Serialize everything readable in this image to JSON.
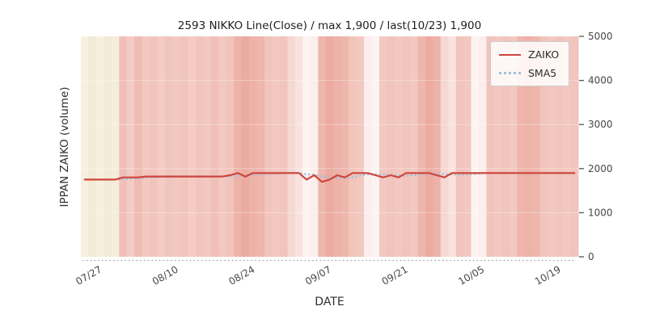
{
  "chart_data": {
    "type": "line",
    "title": "2593 NIKKO Line(Close) / max 1,900 / last(10/23) 1,900",
    "xlabel": "DATE",
    "ylabel": "IPPAN ZAIKO (volume)",
    "ylim": [
      0,
      5000
    ],
    "y_ticks": [
      0,
      1000,
      2000,
      3000,
      4000,
      5000
    ],
    "x_tick_labels": [
      "07/27",
      "08/10",
      "08/24",
      "09/07",
      "09/21",
      "10/05",
      "10/19"
    ],
    "x_tick_indices": [
      2,
      12,
      22,
      32,
      42,
      52,
      62
    ],
    "grid": false,
    "legend_position": "upper right",
    "series": [
      {
        "name": "ZAIKO",
        "color": "#cf453c",
        "style": "solid",
        "values": [
          1750,
          1750,
          1750,
          1750,
          1750,
          1800,
          1800,
          1800,
          1820,
          1820,
          1820,
          1820,
          1820,
          1820,
          1820,
          1820,
          1820,
          1820,
          1820,
          1850,
          1900,
          1820,
          1900,
          1900,
          1900,
          1900,
          1900,
          1900,
          1900,
          1750,
          1850,
          1700,
          1750,
          1850,
          1800,
          1900,
          1900,
          1900,
          1850,
          1800,
          1850,
          1800,
          1900,
          1900,
          1900,
          1900,
          1850,
          1800,
          1900,
          1900,
          1900,
          1900,
          1900,
          1900,
          1900,
          1900,
          1900,
          1900,
          1900,
          1900,
          1900,
          1900,
          1900,
          1900,
          1900
        ]
      },
      {
        "name": "SMA5",
        "color": "#a3c0da",
        "style": "dotted",
        "values": [
          null,
          null,
          null,
          null,
          1750,
          1760,
          1770,
          1780,
          1794,
          1808,
          1812,
          1816,
          1820,
          1820,
          1820,
          1820,
          1820,
          1820,
          1820,
          1826,
          1842,
          1842,
          1858,
          1874,
          1884,
          1884,
          1900,
          1900,
          1900,
          1870,
          1860,
          1820,
          1790,
          1780,
          1790,
          1800,
          1840,
          1870,
          1870,
          1870,
          1860,
          1840,
          1840,
          1850,
          1870,
          1880,
          1890,
          1870,
          1870,
          1870,
          1870,
          1880,
          1900,
          1900,
          1900,
          1900,
          1900,
          1900,
          1900,
          1900,
          1900,
          1900,
          1900,
          1900,
          1900
        ]
      }
    ],
    "background_day_colors": [
      "#f7f0e1",
      "#f3ead7",
      "#f7f0e1",
      "#f3ead7",
      "#f6eedd",
      "#f0c0b8",
      "#f3ccc5",
      "#efbcb3",
      "#f2c8c1",
      "#f1c4bc",
      "#f3ccc5",
      "#f1c4bc",
      "#f2c8c1",
      "#f1c4bc",
      "#f3ccc5",
      "#f1c4bc",
      "#f2c8c1",
      "#f0c0b8",
      "#f2c8c1",
      "#f1c4bc",
      "#edb2a8",
      "#ecaba0",
      "#edb2a8",
      "#eeb6ad",
      "#f1c4bc",
      "#f2c8c1",
      "#f1c4bc",
      "#f6d8d3",
      "#f9e3df",
      "#fdf4f2",
      "#fbeeec",
      "#eeb6ad",
      "#ecaba0",
      "#edb2a8",
      "#eeb6ad",
      "#f1c4bc",
      "#f2c8c1",
      "#fbeeec",
      "#fdf4f2",
      "#f2c8c1",
      "#f1c4bc",
      "#f2c8c1",
      "#f1c4bc",
      "#f2c8c1",
      "#eeb6ad",
      "#ecaba0",
      "#edb2a8",
      "#f6d8d3",
      "#f9e3df",
      "#f1c4bc",
      "#f2c8c1",
      "#fdf4f2",
      "#fbeeec",
      "#f1c4bc",
      "#f2c8c1",
      "#f1c4bc",
      "#f2c8c1",
      "#eeb6ad",
      "#edb2a8",
      "#eeb6ad",
      "#f1c4bc",
      "#f2c8c1",
      "#f1c4bc",
      "#f2c8c1",
      "#f1c4bc"
    ],
    "axis_text_color": "#474747"
  }
}
